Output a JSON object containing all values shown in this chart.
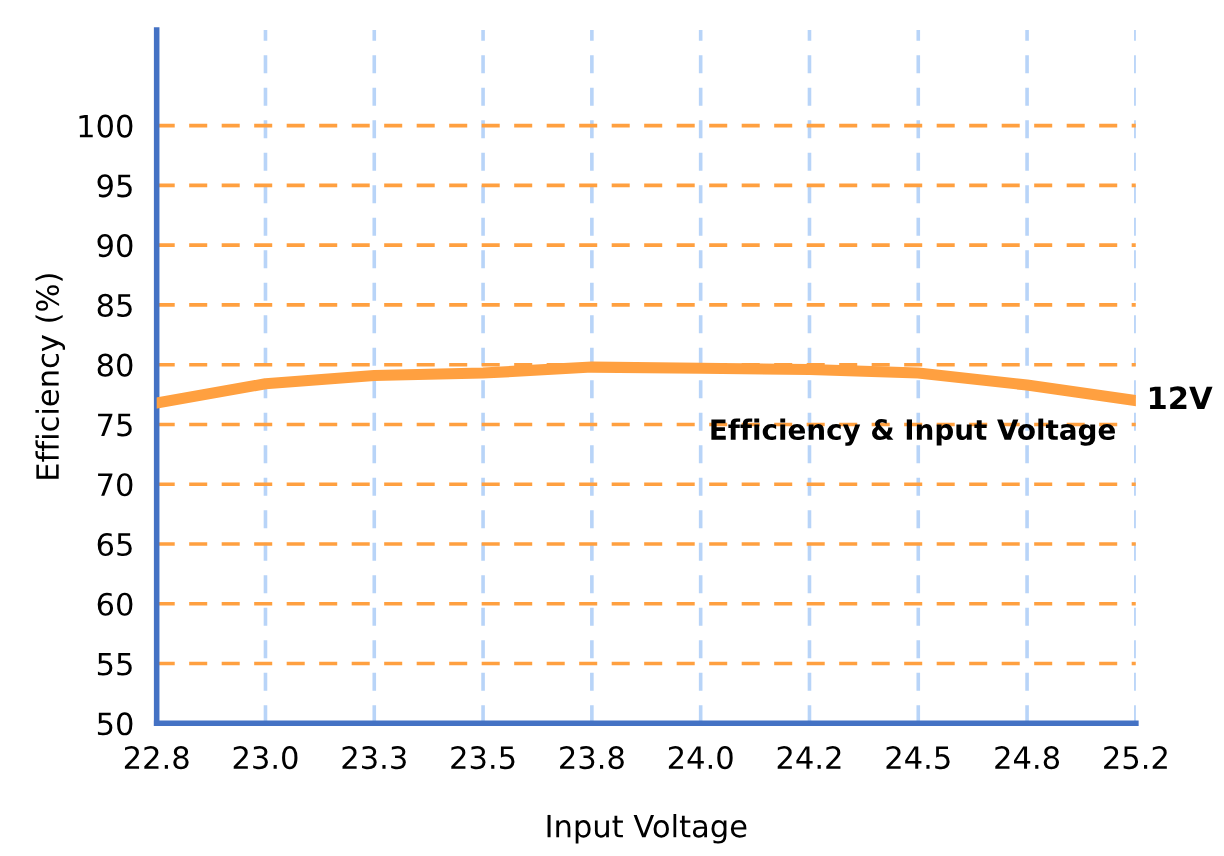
{
  "chart_data": {
    "type": "line",
    "xlabel": "Input Voltage",
    "ylabel": "Efficiency (%)",
    "annotations": [
      "Efficiency & Input Voltage"
    ],
    "categories": [
      "22.8",
      "23.0",
      "23.3",
      "23.5",
      "23.8",
      "24.0",
      "24.2",
      "24.5",
      "24.8",
      "25.2"
    ],
    "series": [
      {
        "name": "12V",
        "color": "#ffa040",
        "values": [
          76.8,
          78.4,
          79.1,
          79.3,
          79.8,
          79.7,
          79.6,
          79.3,
          78.3,
          77.0
        ]
      }
    ],
    "ylim": [
      50,
      108
    ],
    "yticks": [
      50,
      55,
      60,
      65,
      70,
      75,
      80,
      85,
      90,
      95,
      100
    ],
    "grid": true,
    "legend": false,
    "marker": "none",
    "line_style": "solid"
  }
}
